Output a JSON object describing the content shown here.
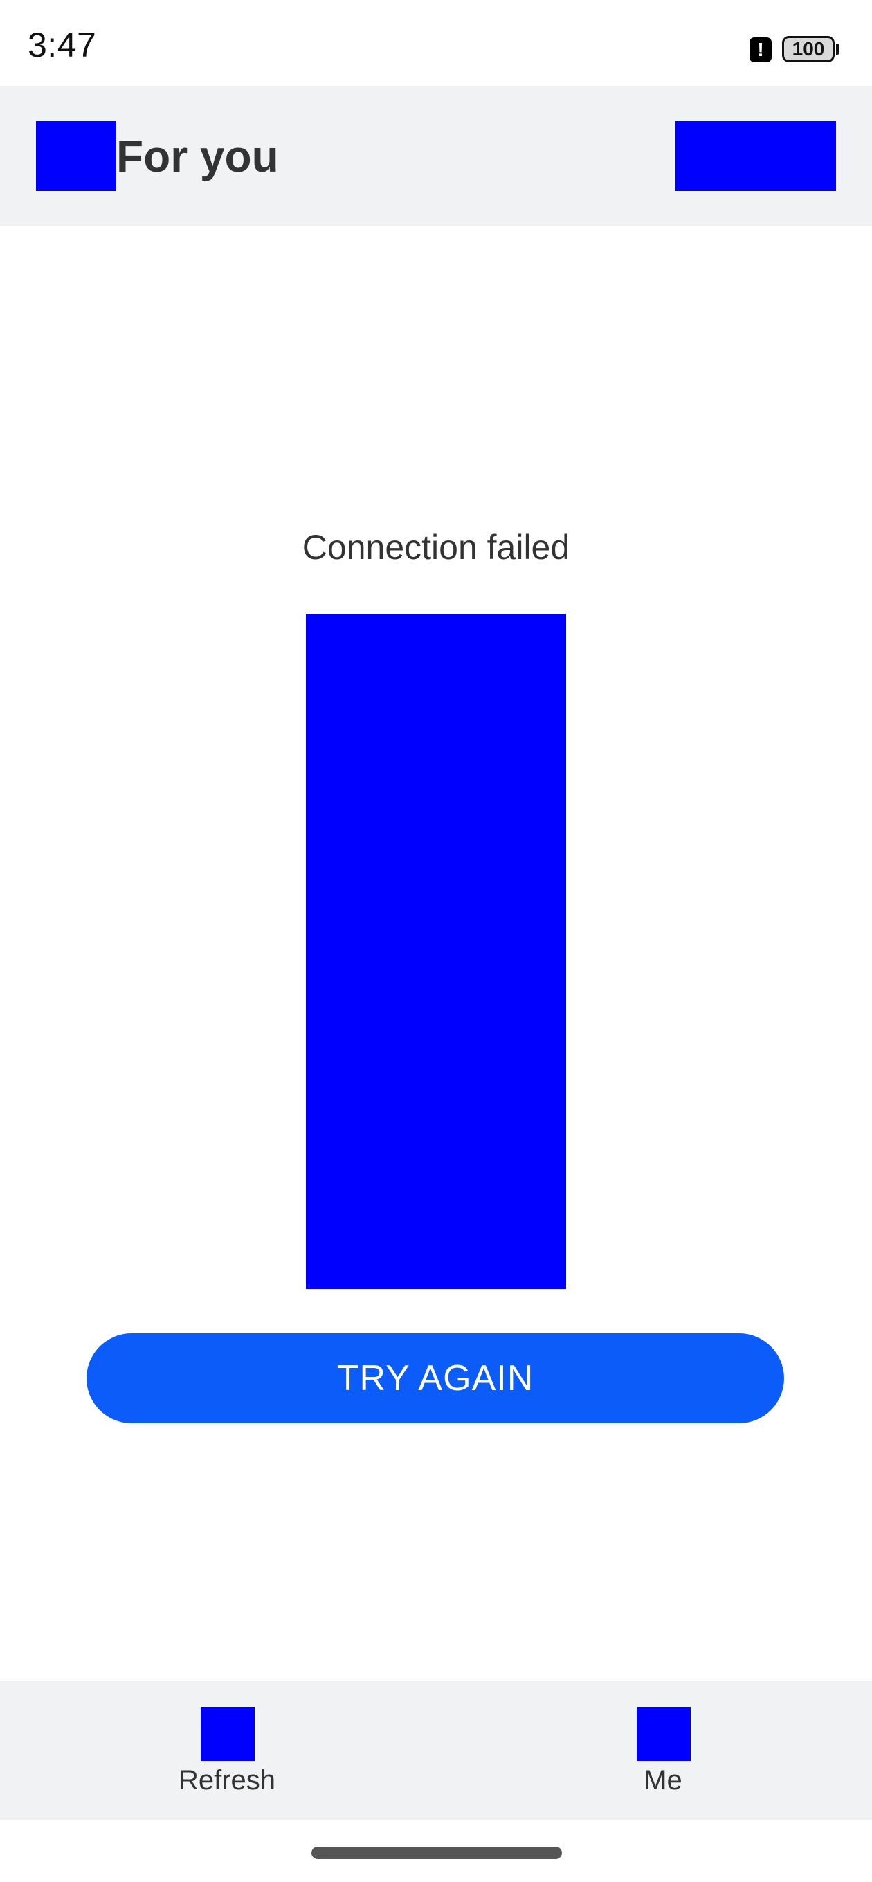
{
  "status_bar": {
    "time": "3:47",
    "alert_glyph": "!",
    "battery": "100",
    "icons": [
      "alert-icon",
      "battery-icon"
    ]
  },
  "header": {
    "title": "For you",
    "left_icon": "menu-icon",
    "right_icon": "header-action-icon"
  },
  "main": {
    "error_message": "Connection failed",
    "illustration": "error-illustration",
    "retry_label": "TRY AGAIN"
  },
  "bottom_nav": {
    "items": [
      {
        "label": "Refresh",
        "icon": "refresh-icon"
      },
      {
        "label": "Me",
        "icon": "profile-icon"
      }
    ]
  },
  "colors": {
    "accent": "#0b5cf8",
    "placeholder": "#0000ff",
    "header_bg": "#f1f2f4",
    "text": "#333333"
  }
}
